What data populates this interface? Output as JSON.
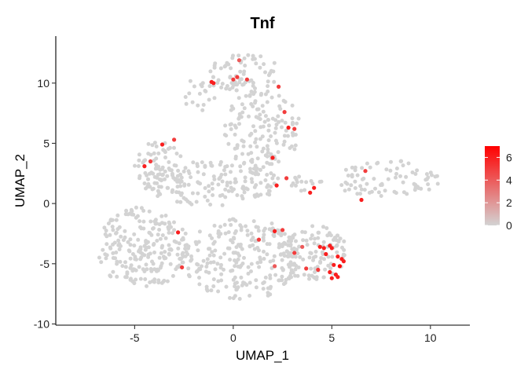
{
  "chart_data": {
    "type": "scatter",
    "title": "Tnf",
    "xlabel": "UMAP_1",
    "ylabel": "UMAP_2",
    "xlim": [
      -9,
      12
    ],
    "ylim": [
      -10.1,
      13.9
    ],
    "x_ticks": [
      "-5",
      "0",
      "5",
      "10"
    ],
    "y_ticks": [
      "-10",
      "-5",
      "0",
      "5",
      "10"
    ],
    "x_tick_values": [
      -5,
      0,
      5,
      10
    ],
    "y_tick_values": [
      -10,
      -5,
      0,
      5,
      10
    ],
    "grid": false,
    "legend": {
      "placement": "right",
      "type": "colorbar",
      "ticks": [
        "0",
        "2",
        "4",
        "6"
      ],
      "tick_values": [
        0,
        2,
        4,
        6
      ],
      "range": [
        0,
        7
      ],
      "color_low": "#d3d3d3",
      "color_high": "#ff0000"
    },
    "background_color": "#d3d3d3",
    "background_regions": [
      {
        "x": [
          -1.2,
          2.4
        ],
        "y": [
          9.2,
          12.5
        ],
        "n": 70
      },
      {
        "x": [
          -2.5,
          -0.8
        ],
        "y": [
          7.5,
          10.5
        ],
        "n": 20
      },
      {
        "x": [
          -0.5,
          3.4
        ],
        "y": [
          2.8,
          9.5
        ],
        "n": 140
      },
      {
        "x": [
          -5,
          -2.4
        ],
        "y": [
          1.0,
          5.2
        ],
        "n": 70
      },
      {
        "x": [
          -4.6,
          2.5
        ],
        "y": [
          -0.2,
          3.6
        ],
        "n": 150
      },
      {
        "x": [
          2.8,
          4.5
        ],
        "y": [
          1.0,
          3.0
        ],
        "n": 15
      },
      {
        "x": [
          5.2,
          10.5
        ],
        "y": [
          0.3,
          3.6
        ],
        "n": 80
      },
      {
        "x": [
          -7,
          -2.2
        ],
        "y": [
          -7.0,
          -0.3
        ],
        "n": 220
      },
      {
        "x": [
          -2.6,
          3.5
        ],
        "y": [
          -8.0,
          -1.2
        ],
        "n": 240
      },
      {
        "x": [
          2.4,
          5.8
        ],
        "y": [
          -6.3,
          -1.8
        ],
        "n": 110
      }
    ],
    "points": [
      {
        "x": 0.3,
        "y": 11.9,
        "v": 4
      },
      {
        "x": -1.1,
        "y": 10.1,
        "v": 6
      },
      {
        "x": -1.0,
        "y": 10.0,
        "v": 6
      },
      {
        "x": 0.0,
        "y": 10.3,
        "v": 5
      },
      {
        "x": 0.2,
        "y": 10.5,
        "v": 5
      },
      {
        "x": 0.7,
        "y": 10.3,
        "v": 5
      },
      {
        "x": 2.3,
        "y": 9.7,
        "v": 5
      },
      {
        "x": 2.6,
        "y": 7.6,
        "v": 5
      },
      {
        "x": 2.8,
        "y": 6.3,
        "v": 6
      },
      {
        "x": 3.1,
        "y": 6.2,
        "v": 5
      },
      {
        "x": 2.0,
        "y": 3.8,
        "v": 6
      },
      {
        "x": -3.6,
        "y": 4.9,
        "v": 6
      },
      {
        "x": -3.0,
        "y": 5.3,
        "v": 5
      },
      {
        "x": -4.2,
        "y": 3.5,
        "v": 5
      },
      {
        "x": -4.5,
        "y": 3.1,
        "v": 6
      },
      {
        "x": 2.2,
        "y": 1.5,
        "v": 6
      },
      {
        "x": 2.7,
        "y": 2.1,
        "v": 5
      },
      {
        "x": 4.1,
        "y": 1.3,
        "v": 6
      },
      {
        "x": 3.9,
        "y": 0.9,
        "v": 6
      },
      {
        "x": 6.7,
        "y": 2.7,
        "v": 5
      },
      {
        "x": 6.5,
        "y": 0.3,
        "v": 6
      },
      {
        "x": -2.8,
        "y": -2.4,
        "v": 6
      },
      {
        "x": 1.3,
        "y": -3.0,
        "v": 5
      },
      {
        "x": 2.1,
        "y": -2.3,
        "v": 6
      },
      {
        "x": 2.5,
        "y": -2.2,
        "v": 5
      },
      {
        "x": 3.1,
        "y": -4.1,
        "v": 5
      },
      {
        "x": 3.5,
        "y": -3.6,
        "v": 4
      },
      {
        "x": 3.7,
        "y": -5.4,
        "v": 5
      },
      {
        "x": 4.3,
        "y": -5.5,
        "v": 5
      },
      {
        "x": 4.4,
        "y": -3.6,
        "v": 6
      },
      {
        "x": 4.6,
        "y": -3.7,
        "v": 6
      },
      {
        "x": 4.7,
        "y": -4.2,
        "v": 6
      },
      {
        "x": 4.9,
        "y": -3.5,
        "v": 6
      },
      {
        "x": 5.0,
        "y": -3.7,
        "v": 6
      },
      {
        "x": 5.1,
        "y": -5.1,
        "v": 6
      },
      {
        "x": 5.3,
        "y": -4.4,
        "v": 6
      },
      {
        "x": 5.5,
        "y": -4.6,
        "v": 6
      },
      {
        "x": 5.6,
        "y": -4.8,
        "v": 6
      },
      {
        "x": 5.4,
        "y": -5.2,
        "v": 7
      },
      {
        "x": 4.9,
        "y": -5.7,
        "v": 6
      },
      {
        "x": 5.2,
        "y": -5.9,
        "v": 6
      },
      {
        "x": 5.0,
        "y": -6.2,
        "v": 6
      },
      {
        "x": 5.3,
        "y": -6.1,
        "v": 6
      },
      {
        "x": -2.6,
        "y": -5.3,
        "v": 5
      },
      {
        "x": 2.1,
        "y": -5.2,
        "v": 4
      }
    ]
  }
}
